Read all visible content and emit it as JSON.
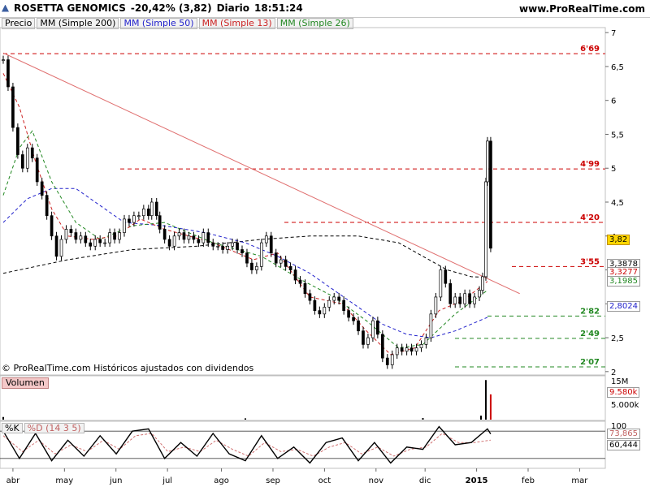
{
  "header": {
    "symbol": "ROSETTA GENOMICS",
    "change": "-20,42% (3,82)",
    "period": "Diario",
    "time": "18:51:24",
    "site": "www.ProRealTime.com"
  },
  "legend": [
    {
      "label": "Precio",
      "color": "#000000"
    },
    {
      "label": "MM (Simple 200)",
      "color": "#000000"
    },
    {
      "label": "MM (Simple 50)",
      "color": "#2222cc"
    },
    {
      "label": "MM (Simple 13)",
      "color": "#cc2222"
    },
    {
      "label": "MM (Simple 26)",
      "color": "#228822"
    }
  ],
  "copyright": "© ProRealTime.com Históricos ajustados con dividendos",
  "volume_panel": {
    "label": "Volumen",
    "ticks": [
      "15M",
      "9.580k",
      "5.000k"
    ]
  },
  "oscillator_panel": {
    "label_k": "%K",
    "label_d": "%D (14 3 5)",
    "top_label": "100",
    "values": [
      "73,865",
      "60,444"
    ]
  },
  "right_tags": {
    "last_price": "3,82",
    "ma200": "3,3878",
    "ma13": "3,3277",
    "ma26": "3,1985",
    "ma50": "2,8024"
  },
  "chart_data": {
    "type": "candlestick",
    "title": "ROSETTA GENOMICS",
    "y_ticks": [
      2,
      2.5,
      3,
      3.5,
      4,
      4.5,
      5,
      5.5,
      6,
      6.5,
      7
    ],
    "y_tick_labels": [
      "2",
      "2,5",
      "3",
      "3,5",
      "4",
      "4,5",
      "5",
      "5,5",
      "6",
      "6,5",
      "7"
    ],
    "ylim": [
      1.95,
      7.05
    ],
    "x_labels": [
      "abr",
      "may",
      "jun",
      "jul",
      "ago",
      "sep",
      "oct",
      "nov",
      "dic",
      "2015",
      "feb",
      "mar"
    ],
    "levels": [
      {
        "label": "6'69",
        "value": 6.69,
        "color": "#cc0000"
      },
      {
        "label": "4'99",
        "value": 4.99,
        "color": "#cc0000"
      },
      {
        "label": "4'20",
        "value": 4.2,
        "color": "#cc0000"
      },
      {
        "label": "3'55",
        "value": 3.55,
        "color": "#cc0000"
      },
      {
        "label": "2'82",
        "value": 2.82,
        "color": "#228822"
      },
      {
        "label": "2'49",
        "value": 2.49,
        "color": "#228822"
      },
      {
        "label": "2'07",
        "value": 2.07,
        "color": "#228822"
      }
    ],
    "price": [
      {
        "d": 0,
        "v": 6.6
      },
      {
        "d": 3,
        "v": 6.2
      },
      {
        "d": 6,
        "v": 5.6
      },
      {
        "d": 9,
        "v": 5.2
      },
      {
        "d": 12,
        "v": 5.0
      },
      {
        "d": 15,
        "v": 5.3
      },
      {
        "d": 18,
        "v": 5.15
      },
      {
        "d": 21,
        "v": 4.8
      },
      {
        "d": 24,
        "v": 4.6
      },
      {
        "d": 27,
        "v": 4.3
      },
      {
        "d": 30,
        "v": 4.0
      },
      {
        "d": 33,
        "v": 3.7
      },
      {
        "d": 36,
        "v": 3.95
      },
      {
        "d": 39,
        "v": 4.1
      },
      {
        "d": 42,
        "v": 4.05
      },
      {
        "d": 45,
        "v": 3.95
      },
      {
        "d": 48,
        "v": 4.0
      },
      {
        "d": 51,
        "v": 3.9
      },
      {
        "d": 54,
        "v": 3.85
      },
      {
        "d": 57,
        "v": 3.95
      },
      {
        "d": 60,
        "v": 3.9
      },
      {
        "d": 63,
        "v": 3.9
      },
      {
        "d": 66,
        "v": 4.05
      },
      {
        "d": 69,
        "v": 3.95
      },
      {
        "d": 72,
        "v": 4.05
      },
      {
        "d": 75,
        "v": 4.25
      },
      {
        "d": 78,
        "v": 4.2
      },
      {
        "d": 81,
        "v": 4.3
      },
      {
        "d": 84,
        "v": 4.3
      },
      {
        "d": 87,
        "v": 4.4
      },
      {
        "d": 90,
        "v": 4.3
      },
      {
        "d": 92,
        "v": 4.5
      },
      {
        "d": 95,
        "v": 4.3
      },
      {
        "d": 97,
        "v": 4.1
      },
      {
        "d": 100,
        "v": 3.95
      },
      {
        "d": 103,
        "v": 3.85
      },
      {
        "d": 106,
        "v": 4.0
      },
      {
        "d": 109,
        "v": 4.05
      },
      {
        "d": 112,
        "v": 3.95
      },
      {
        "d": 115,
        "v": 4.0
      },
      {
        "d": 118,
        "v": 3.95
      },
      {
        "d": 121,
        "v": 3.9
      },
      {
        "d": 124,
        "v": 4.05
      },
      {
        "d": 127,
        "v": 3.9
      },
      {
        "d": 130,
        "v": 3.85
      },
      {
        "d": 133,
        "v": 3.85
      },
      {
        "d": 136,
        "v": 3.8
      },
      {
        "d": 139,
        "v": 3.85
      },
      {
        "d": 142,
        "v": 3.9
      },
      {
        "d": 145,
        "v": 3.8
      },
      {
        "d": 148,
        "v": 3.75
      },
      {
        "d": 151,
        "v": 3.6
      },
      {
        "d": 154,
        "v": 3.5
      },
      {
        "d": 157,
        "v": 3.55
      },
      {
        "d": 160,
        "v": 3.9
      },
      {
        "d": 163,
        "v": 4.0
      },
      {
        "d": 166,
        "v": 3.75
      },
      {
        "d": 169,
        "v": 3.6
      },
      {
        "d": 172,
        "v": 3.65
      },
      {
        "d": 175,
        "v": 3.55
      },
      {
        "d": 178,
        "v": 3.5
      },
      {
        "d": 181,
        "v": 3.35
      },
      {
        "d": 184,
        "v": 3.3
      },
      {
        "d": 187,
        "v": 3.15
      },
      {
        "d": 190,
        "v": 3.05
      },
      {
        "d": 193,
        "v": 2.9
      },
      {
        "d": 196,
        "v": 2.85
      },
      {
        "d": 199,
        "v": 2.95
      },
      {
        "d": 202,
        "v": 3.05
      },
      {
        "d": 205,
        "v": 3.1
      },
      {
        "d": 208,
        "v": 3.05
      },
      {
        "d": 211,
        "v": 2.9
      },
      {
        "d": 214,
        "v": 2.8
      },
      {
        "d": 217,
        "v": 2.75
      },
      {
        "d": 220,
        "v": 2.6
      },
      {
        "d": 223,
        "v": 2.4
      },
      {
        "d": 226,
        "v": 2.5
      },
      {
        "d": 229,
        "v": 2.75
      },
      {
        "d": 232,
        "v": 2.55
      },
      {
        "d": 235,
        "v": 2.2
      },
      {
        "d": 238,
        "v": 2.1
      },
      {
        "d": 241,
        "v": 2.25
      },
      {
        "d": 244,
        "v": 2.35
      },
      {
        "d": 247,
        "v": 2.3
      },
      {
        "d": 250,
        "v": 2.35
      },
      {
        "d": 253,
        "v": 2.3
      },
      {
        "d": 256,
        "v": 2.35
      },
      {
        "d": 259,
        "v": 2.4
      },
      {
        "d": 262,
        "v": 2.5
      },
      {
        "d": 265,
        "v": 2.85
      },
      {
        "d": 268,
        "v": 3.1
      },
      {
        "d": 271,
        "v": 3.5
      },
      {
        "d": 274,
        "v": 3.3
      },
      {
        "d": 277,
        "v": 3.0
      },
      {
        "d": 280,
        "v": 3.1
      },
      {
        "d": 283,
        "v": 3.0
      },
      {
        "d": 286,
        "v": 3.15
      },
      {
        "d": 289,
        "v": 3.0
      },
      {
        "d": 292,
        "v": 3.1
      },
      {
        "d": 295,
        "v": 3.2
      },
      {
        "d": 297,
        "v": 3.4
      },
      {
        "d": 299,
        "v": 4.8
      },
      {
        "d": 300,
        "v": 5.4
      },
      {
        "d": 302,
        "v": 3.82
      }
    ],
    "ma200": [
      {
        "d": 0,
        "v": 3.45
      },
      {
        "d": 40,
        "v": 3.65
      },
      {
        "d": 80,
        "v": 3.8
      },
      {
        "d": 120,
        "v": 3.85
      },
      {
        "d": 160,
        "v": 3.95
      },
      {
        "d": 190,
        "v": 4.0
      },
      {
        "d": 220,
        "v": 4.0
      },
      {
        "d": 245,
        "v": 3.9
      },
      {
        "d": 260,
        "v": 3.7
      },
      {
        "d": 275,
        "v": 3.5
      },
      {
        "d": 290,
        "v": 3.4
      },
      {
        "d": 300,
        "v": 3.39
      }
    ],
    "ma50": [
      {
        "d": 0,
        "v": 4.2
      },
      {
        "d": 15,
        "v": 4.55
      },
      {
        "d": 30,
        "v": 4.7
      },
      {
        "d": 45,
        "v": 4.7
      },
      {
        "d": 60,
        "v": 4.45
      },
      {
        "d": 75,
        "v": 4.2
      },
      {
        "d": 100,
        "v": 4.15
      },
      {
        "d": 125,
        "v": 4.05
      },
      {
        "d": 150,
        "v": 3.9
      },
      {
        "d": 170,
        "v": 3.7
      },
      {
        "d": 190,
        "v": 3.45
      },
      {
        "d": 205,
        "v": 3.2
      },
      {
        "d": 220,
        "v": 2.95
      },
      {
        "d": 235,
        "v": 2.7
      },
      {
        "d": 250,
        "v": 2.55
      },
      {
        "d": 265,
        "v": 2.5
      },
      {
        "d": 280,
        "v": 2.6
      },
      {
        "d": 300,
        "v": 2.8
      }
    ],
    "ma13": [
      {
        "d": 0,
        "v": 6.4
      },
      {
        "d": 10,
        "v": 5.9
      },
      {
        "d": 20,
        "v": 5.1
      },
      {
        "d": 30,
        "v": 4.4
      },
      {
        "d": 40,
        "v": 4.0
      },
      {
        "d": 55,
        "v": 3.95
      },
      {
        "d": 70,
        "v": 4.0
      },
      {
        "d": 85,
        "v": 4.25
      },
      {
        "d": 100,
        "v": 4.1
      },
      {
        "d": 130,
        "v": 3.9
      },
      {
        "d": 155,
        "v": 3.65
      },
      {
        "d": 170,
        "v": 3.75
      },
      {
        "d": 190,
        "v": 3.1
      },
      {
        "d": 210,
        "v": 3.0
      },
      {
        "d": 225,
        "v": 2.6
      },
      {
        "d": 240,
        "v": 2.25
      },
      {
        "d": 255,
        "v": 2.35
      },
      {
        "d": 270,
        "v": 2.9
      },
      {
        "d": 285,
        "v": 3.05
      },
      {
        "d": 300,
        "v": 3.33
      }
    ],
    "ma26": [
      {
        "d": 0,
        "v": 4.6
      },
      {
        "d": 10,
        "v": 5.3
      },
      {
        "d": 18,
        "v": 5.55
      },
      {
        "d": 30,
        "v": 4.8
      },
      {
        "d": 45,
        "v": 4.2
      },
      {
        "d": 60,
        "v": 3.95
      },
      {
        "d": 80,
        "v": 4.15
      },
      {
        "d": 100,
        "v": 4.2
      },
      {
        "d": 130,
        "v": 3.9
      },
      {
        "d": 160,
        "v": 3.7
      },
      {
        "d": 185,
        "v": 3.35
      },
      {
        "d": 205,
        "v": 3.1
      },
      {
        "d": 225,
        "v": 2.75
      },
      {
        "d": 245,
        "v": 2.35
      },
      {
        "d": 260,
        "v": 2.4
      },
      {
        "d": 280,
        "v": 2.85
      },
      {
        "d": 300,
        "v": 3.2
      }
    ],
    "trendline": [
      {
        "d": 0,
        "v": 6.7
      },
      {
        "d": 320,
        "v": 3.15
      }
    ],
    "volume": [
      {
        "d": 0,
        "v": 1.0
      },
      {
        "d": 150,
        "v": 0.5
      },
      {
        "d": 260,
        "v": 0.6
      },
      {
        "d": 296,
        "v": 1.5
      },
      {
        "d": 299,
        "v": 15.0
      },
      {
        "d": 302,
        "v": 9.58
      }
    ],
    "volume_ylim": [
      0,
      16
    ],
    "stoch_k": [
      {
        "d": 0,
        "v": 80
      },
      {
        "d": 10,
        "v": 20
      },
      {
        "d": 20,
        "v": 75
      },
      {
        "d": 30,
        "v": 15
      },
      {
        "d": 40,
        "v": 60
      },
      {
        "d": 50,
        "v": 25
      },
      {
        "d": 60,
        "v": 70
      },
      {
        "d": 70,
        "v": 30
      },
      {
        "d": 80,
        "v": 80
      },
      {
        "d": 90,
        "v": 85
      },
      {
        "d": 100,
        "v": 20
      },
      {
        "d": 110,
        "v": 55
      },
      {
        "d": 120,
        "v": 25
      },
      {
        "d": 130,
        "v": 75
      },
      {
        "d": 140,
        "v": 30
      },
      {
        "d": 150,
        "v": 15
      },
      {
        "d": 160,
        "v": 70
      },
      {
        "d": 170,
        "v": 20
      },
      {
        "d": 180,
        "v": 45
      },
      {
        "d": 190,
        "v": 10
      },
      {
        "d": 200,
        "v": 55
      },
      {
        "d": 210,
        "v": 65
      },
      {
        "d": 220,
        "v": 15
      },
      {
        "d": 230,
        "v": 55
      },
      {
        "d": 240,
        "v": 10
      },
      {
        "d": 250,
        "v": 45
      },
      {
        "d": 260,
        "v": 40
      },
      {
        "d": 270,
        "v": 90
      },
      {
        "d": 280,
        "v": 50
      },
      {
        "d": 290,
        "v": 55
      },
      {
        "d": 300,
        "v": 85
      },
      {
        "d": 302,
        "v": 73.865
      }
    ],
    "stoch_d": [
      {
        "d": 0,
        "v": 70
      },
      {
        "d": 12,
        "v": 35
      },
      {
        "d": 22,
        "v": 60
      },
      {
        "d": 32,
        "v": 30
      },
      {
        "d": 42,
        "v": 50
      },
      {
        "d": 52,
        "v": 35
      },
      {
        "d": 62,
        "v": 60
      },
      {
        "d": 72,
        "v": 40
      },
      {
        "d": 82,
        "v": 70
      },
      {
        "d": 92,
        "v": 75
      },
      {
        "d": 102,
        "v": 35
      },
      {
        "d": 112,
        "v": 45
      },
      {
        "d": 122,
        "v": 35
      },
      {
        "d": 132,
        "v": 60
      },
      {
        "d": 142,
        "v": 40
      },
      {
        "d": 152,
        "v": 25
      },
      {
        "d": 162,
        "v": 55
      },
      {
        "d": 172,
        "v": 35
      },
      {
        "d": 182,
        "v": 40
      },
      {
        "d": 192,
        "v": 25
      },
      {
        "d": 202,
        "v": 45
      },
      {
        "d": 212,
        "v": 55
      },
      {
        "d": 222,
        "v": 30
      },
      {
        "d": 232,
        "v": 45
      },
      {
        "d": 242,
        "v": 25
      },
      {
        "d": 252,
        "v": 40
      },
      {
        "d": 262,
        "v": 45
      },
      {
        "d": 272,
        "v": 75
      },
      {
        "d": 282,
        "v": 55
      },
      {
        "d": 292,
        "v": 55
      },
      {
        "d": 302,
        "v": 60.444
      }
    ],
    "stoch_ylim": [
      0,
      100
    ]
  }
}
